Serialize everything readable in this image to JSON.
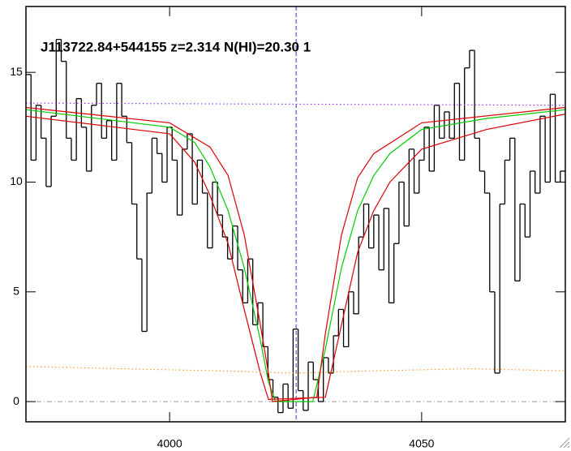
{
  "chart_data": {
    "type": "spectrum",
    "title": "J113722.84+544155 z=2.314 N(HI)=20.30 1",
    "xlim": [
      3971.5,
      4078.5
    ],
    "ylim": [
      -0.92,
      18.0
    ],
    "xticks": [
      4000,
      4050
    ],
    "yticks": [
      0,
      5,
      10,
      15
    ],
    "vline": 4025.1,
    "hline": 0,
    "series": [
      {
        "style": "step",
        "color": "#000000",
        "x": [
          3972,
          3973,
          3974,
          3975,
          3976,
          3977,
          3978,
          3979,
          3980,
          3981,
          3982,
          3983,
          3984,
          3985,
          3986,
          3987,
          3988,
          3989,
          3990,
          3991,
          3992,
          3993,
          3994,
          3995,
          3996,
          3997,
          3998,
          3999,
          4000,
          4001,
          4002,
          4003,
          4004,
          4005,
          4006,
          4007,
          4008,
          4009,
          4010,
          4011,
          4012,
          4013,
          4014,
          4015,
          4016,
          4017,
          4018,
          4019,
          4020,
          4021,
          4022,
          4023,
          4024,
          4025,
          4026,
          4027,
          4028,
          4029,
          4030,
          4031,
          4032,
          4033,
          4034,
          4035,
          4036,
          4037,
          4038,
          4039,
          4040,
          4041,
          4042,
          4043,
          4044,
          4045,
          4046,
          4047,
          4048,
          4049,
          4050,
          4051,
          4052,
          4053,
          4054,
          4055,
          4056,
          4057,
          4058,
          4059,
          4060,
          4061,
          4062,
          4063,
          4064,
          4065,
          4066,
          4067,
          4068,
          4069,
          4070,
          4071,
          4072,
          4073,
          4074,
          4075,
          4076,
          4077,
          4078
        ],
        "values": [
          14.9,
          11.0,
          13.5,
          12.0,
          9.8,
          13.0,
          16.5,
          15.5,
          12.0,
          11.0,
          13.8,
          12.5,
          10.5,
          13.5,
          14.5,
          12.0,
          12.8,
          11.0,
          14.5,
          13.0,
          11.8,
          9.0,
          6.5,
          3.2,
          9.5,
          12.0,
          11.3,
          10.0,
          12.5,
          11.0,
          8.5,
          11.5,
          12.2,
          9.0,
          11.0,
          9.5,
          7.0,
          10.0,
          8.5,
          7.5,
          6.5,
          8.0,
          6.0,
          4.5,
          6.5,
          3.5,
          4.5,
          2.5,
          1.0,
          0.2,
          -0.5,
          0.8,
          -0.3,
          3.3,
          0.5,
          -0.4,
          1.8,
          1.0,
          0.0,
          2.0,
          1.3,
          3.0,
          4.2,
          2.5,
          5.0,
          4.0,
          7.5,
          9.0,
          7.0,
          8.5,
          6.0,
          8.8,
          4.5,
          7.2,
          10.0,
          8.0,
          11.5,
          9.5,
          11.0,
          12.5,
          10.5,
          13.5,
          12.0,
          13.2,
          12.0,
          14.5,
          11.0,
          15.2,
          16.0,
          12.0,
          10.5,
          9.5,
          5.0,
          1.3,
          9.0,
          11.0,
          12.0,
          5.5,
          9.0,
          7.5,
          10.5,
          9.5,
          13.0,
          10.0,
          14.0,
          10.0,
          10.5
        ]
      },
      {
        "style": "line",
        "color": "#00cc00",
        "x": [
          3971.5,
          4000,
          4005,
          4008,
          4011.6,
          4014.8,
          4018,
          4019.6,
          4021,
          4028.4,
          4030.9,
          4034.1,
          4037.3,
          4040.5,
          4043.7,
          4050,
          4062.9,
          4078.5
        ],
        "values": [
          13.3,
          12.5,
          11.8,
          10.7,
          8.7,
          6.1,
          2.8,
          0.9,
          0,
          0,
          2.4,
          6.1,
          8.7,
          10.3,
          11.3,
          12.4,
          12.9,
          13.3
        ]
      },
      {
        "style": "line",
        "color": "#dd0000",
        "x": [
          3971.5,
          4000,
          4008,
          4011.6,
          4014.8,
          4018,
          4019.6,
          4020.4,
          4029.2,
          4030.9,
          4034.1,
          4037.3,
          4040.5,
          4050,
          4078.5
        ],
        "values": [
          13.4,
          12.7,
          11.6,
          10.3,
          7.6,
          3.5,
          1.3,
          0,
          0.2,
          3.1,
          7.6,
          10.2,
          11.3,
          12.7,
          13.4
        ]
      },
      {
        "style": "line",
        "color": "#dd0000",
        "x": [
          3971.5,
          4000,
          4005,
          4008,
          4011.6,
          4014.8,
          4018,
          4019.6,
          4030.9,
          4034.1,
          4037.3,
          4040.5,
          4043.7,
          4050,
          4062.9,
          4078.5
        ],
        "values": [
          13.0,
          12.2,
          10.9,
          9.4,
          7.2,
          4.2,
          1.3,
          0.1,
          0.2,
          3.5,
          6.8,
          8.7,
          10.0,
          11.5,
          12.4,
          13.1
        ]
      },
      {
        "style": "dotted",
        "color": "#9933ff",
        "x": [
          3971.5,
          4078.5
        ],
        "values": [
          13.6,
          13.5
        ]
      },
      {
        "style": "dotted",
        "color": "#ff9933",
        "x": [
          3971.5,
          3990,
          4010,
          4025,
          4040,
          4060,
          4078.5
        ],
        "values": [
          1.6,
          1.5,
          1.4,
          1.3,
          1.4,
          1.5,
          1.4
        ]
      }
    ]
  }
}
